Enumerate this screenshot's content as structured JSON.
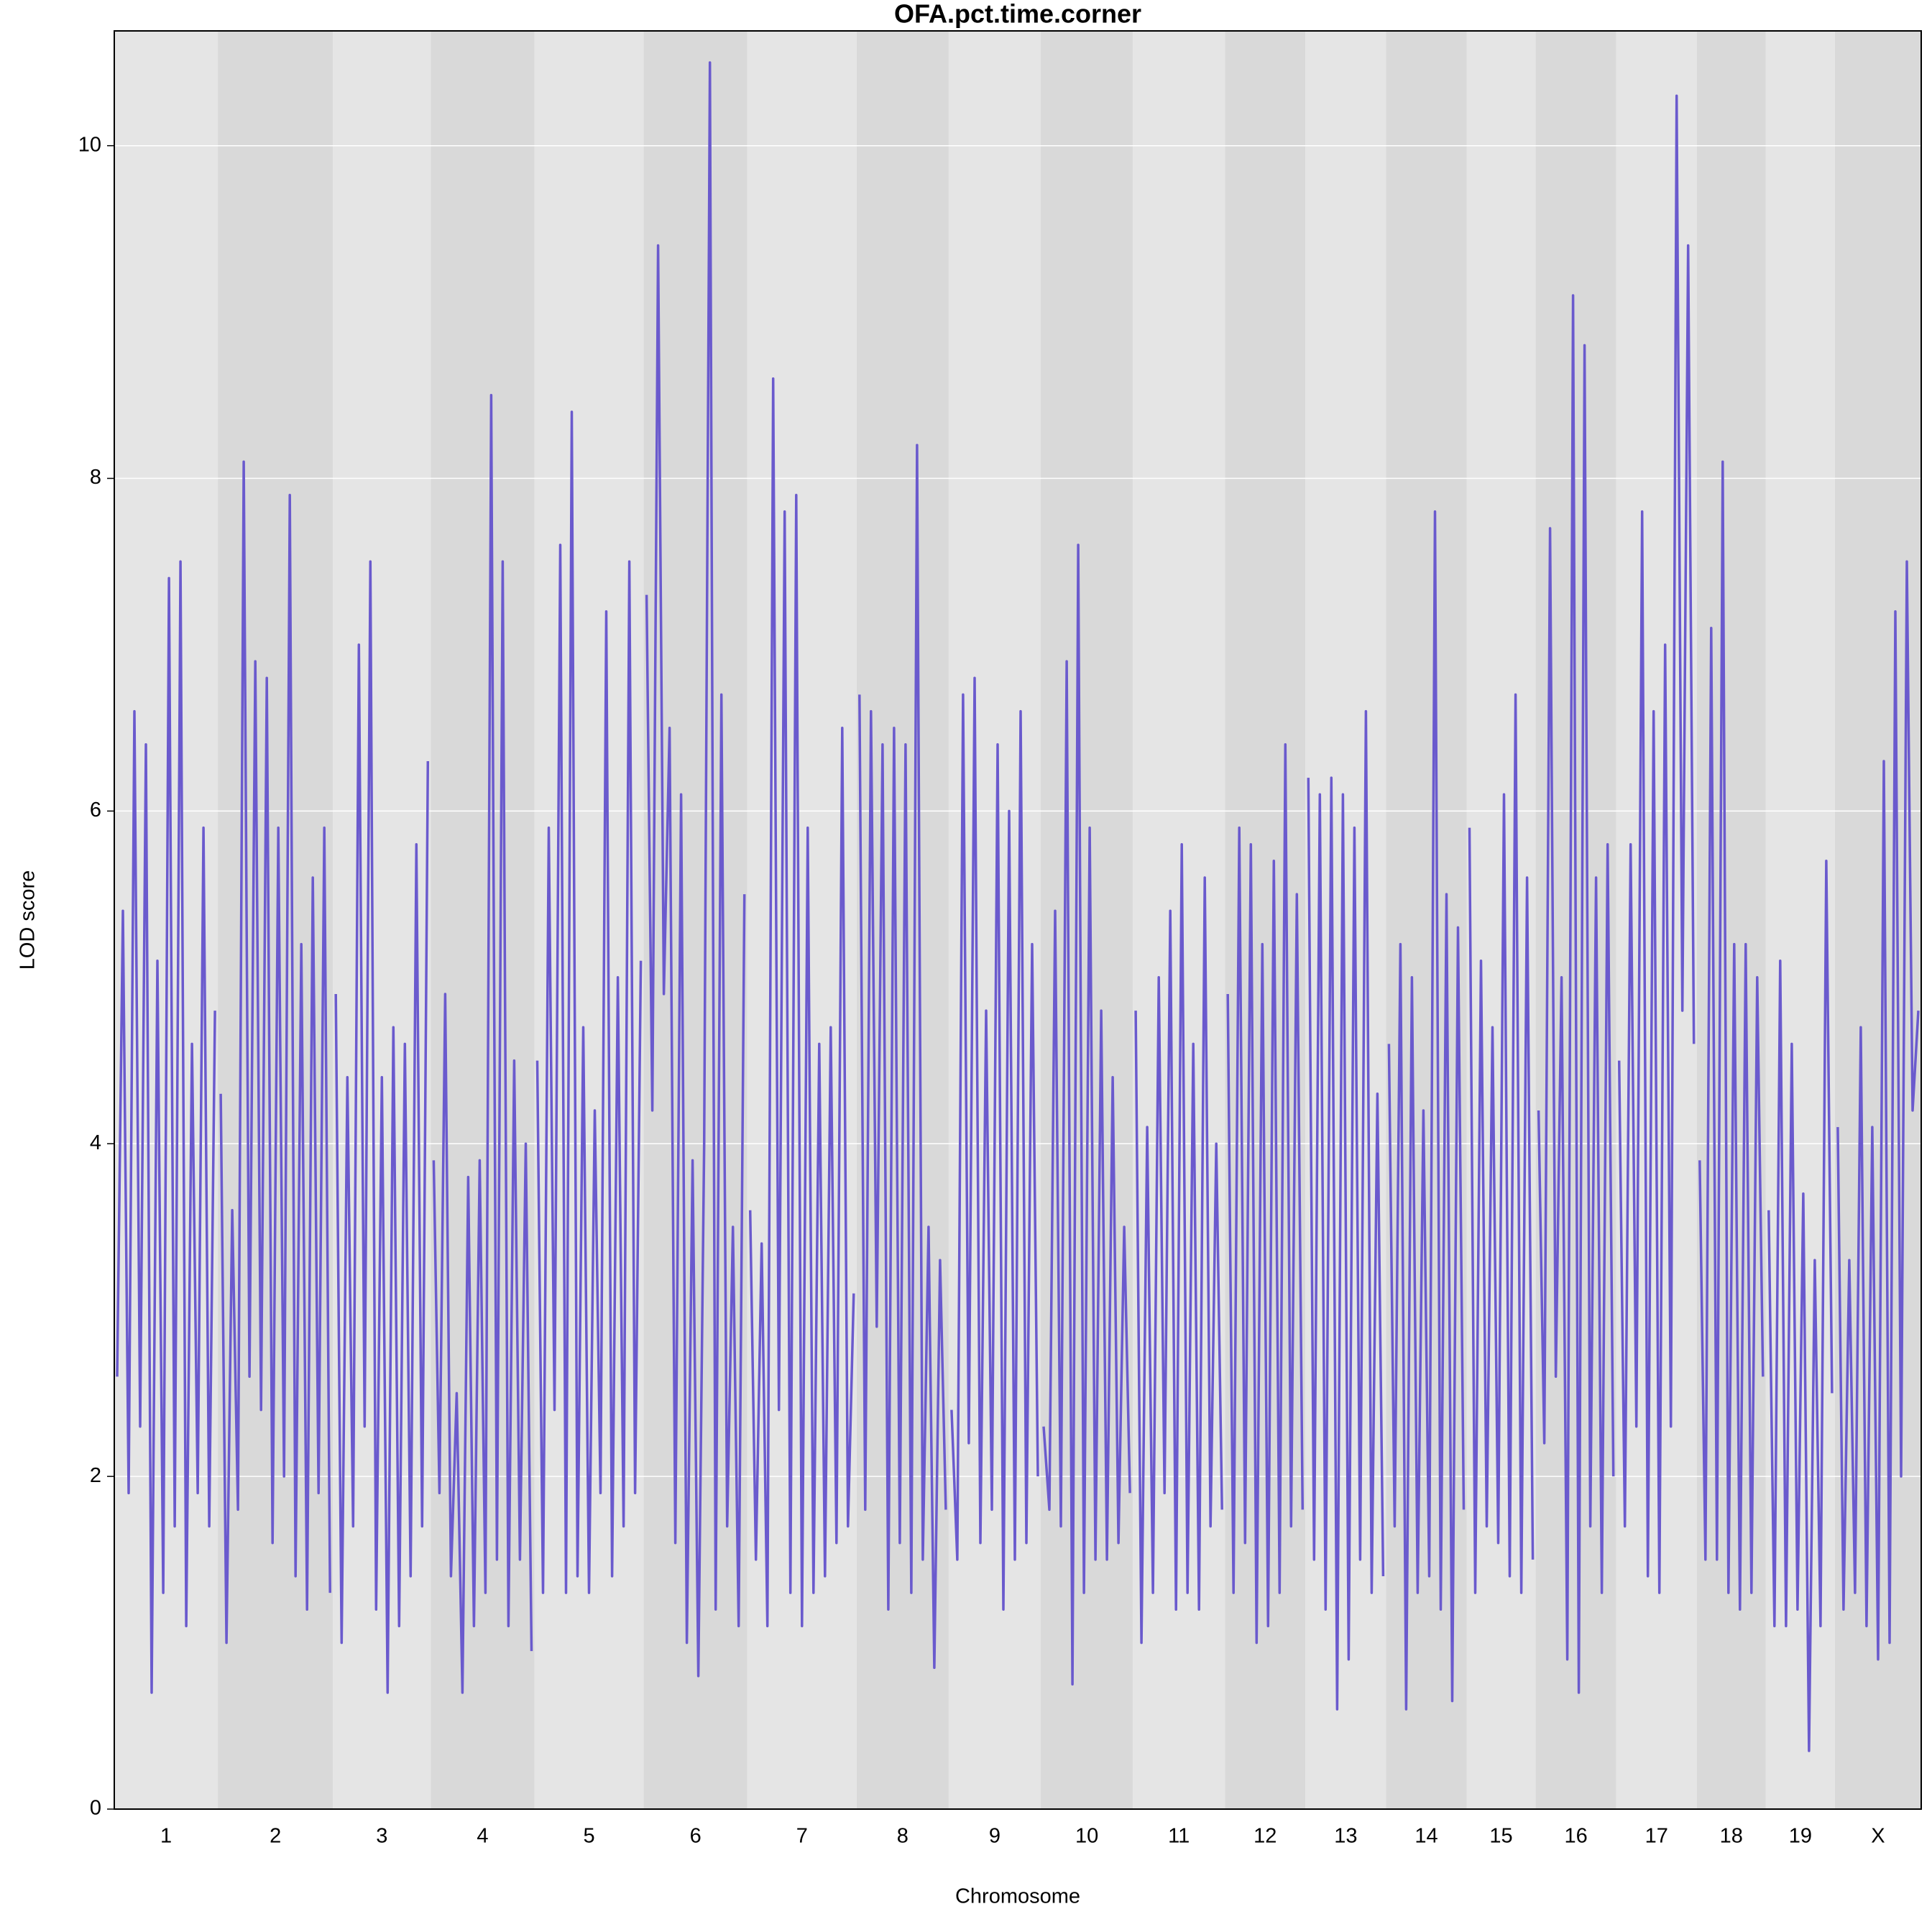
{
  "chart_data": {
    "type": "line",
    "title": "OFA.pct.time.corner",
    "x_label": "Chromosome",
    "y_label": "LOD score",
    "color": "#6a5acd",
    "band_colors": [
      "#e5e5e5",
      "#d9d9d9"
    ],
    "grid": true,
    "ylim": [
      0,
      10.69
    ],
    "yticks": [
      0,
      2,
      4,
      6,
      8,
      10
    ],
    "categories": [
      "1",
      "2",
      "3",
      "4",
      "5",
      "6",
      "7",
      "8",
      "9",
      "10",
      "11",
      "12",
      "13",
      "14",
      "15",
      "16",
      "17",
      "18",
      "19",
      "X"
    ],
    "values": [
      [
        2.6,
        5.4,
        1.9,
        6.6,
        2.3,
        6.4,
        0.7,
        5.1,
        1.3,
        7.4,
        1.7,
        7.5,
        1.1,
        4.6,
        1.9,
        5.9,
        1.7,
        4.8
      ],
      [
        4.3,
        1.0,
        3.6,
        1.8,
        8.1,
        2.6,
        6.9,
        2.4,
        6.8,
        1.6,
        5.9,
        2.0,
        7.9,
        1.4,
        5.2,
        1.2,
        5.6,
        1.9,
        5.9,
        1.3
      ],
      [
        4.9,
        1.0,
        4.4,
        1.7,
        7.0,
        2.3,
        7.5,
        1.2,
        4.4,
        0.7,
        4.7,
        1.1,
        4.6,
        1.4,
        5.8,
        1.7,
        6.3
      ],
      [
        3.9,
        1.9,
        4.9,
        1.4,
        2.5,
        0.7,
        3.8,
        1.1,
        3.9,
        1.3,
        8.5,
        1.5,
        7.5,
        1.1,
        4.5,
        1.5,
        4.0,
        0.95
      ],
      [
        4.5,
        1.3,
        5.9,
        2.4,
        7.6,
        1.3,
        8.4,
        1.4,
        4.7,
        1.3,
        4.2,
        1.9,
        7.2,
        1.4,
        5.0,
        1.7,
        7.5,
        1.9,
        5.1
      ],
      [
        7.3,
        4.2,
        9.4,
        4.9,
        6.5,
        1.6,
        6.1,
        1.0,
        3.9,
        0.8,
        4.0,
        10.5,
        1.2,
        6.7,
        1.7,
        3.5,
        1.1,
        5.5
      ],
      [
        3.6,
        1.5,
        3.4,
        1.1,
        8.6,
        2.4,
        7.8,
        1.3,
        7.9,
        1.1,
        5.9,
        1.3,
        4.6,
        1.4,
        4.7,
        1.6,
        6.5,
        1.7,
        3.1
      ],
      [
        6.7,
        1.8,
        6.6,
        2.9,
        6.4,
        1.2,
        6.5,
        1.6,
        6.4,
        1.3,
        8.2,
        1.5,
        3.5,
        0.85,
        3.3,
        1.8
      ],
      [
        2.4,
        1.5,
        6.7,
        2.2,
        6.8,
        1.6,
        4.8,
        1.8,
        6.4,
        1.2,
        6.0,
        1.5,
        6.6,
        1.6,
        5.2,
        2.0
      ],
      [
        2.3,
        1.8,
        5.4,
        1.7,
        6.9,
        0.75,
        7.6,
        1.3,
        5.9,
        1.5,
        4.8,
        1.5,
        4.4,
        1.6,
        3.5,
        1.9
      ],
      [
        4.8,
        1.0,
        4.1,
        1.3,
        5.0,
        1.9,
        5.4,
        1.2,
        5.8,
        1.3,
        4.6,
        1.2,
        5.6,
        1.7,
        4.0,
        1.8
      ],
      [
        4.9,
        1.3,
        5.9,
        1.6,
        5.8,
        1.0,
        5.2,
        1.1,
        5.7,
        1.3,
        6.4,
        1.7,
        5.5,
        1.8
      ],
      [
        6.2,
        1.5,
        6.1,
        1.2,
        6.2,
        0.6,
        6.1,
        0.9,
        5.9,
        1.5,
        6.6,
        1.3,
        4.3,
        1.4
      ],
      [
        4.6,
        1.7,
        5.2,
        0.6,
        5.0,
        1.3,
        4.2,
        1.4,
        7.8,
        1.2,
        5.5,
        0.65,
        5.3,
        1.8
      ],
      [
        5.9,
        1.3,
        5.1,
        1.7,
        4.7,
        1.6,
        6.1,
        1.4,
        6.7,
        1.3,
        5.6,
        1.5
      ],
      [
        4.2,
        2.2,
        7.7,
        2.6,
        5.0,
        0.9,
        9.1,
        0.7,
        8.8,
        1.7,
        5.6,
        1.3,
        5.8,
        2.0
      ],
      [
        4.5,
        1.7,
        5.8,
        2.3,
        7.8,
        1.4,
        6.6,
        1.3,
        7.0,
        2.3,
        10.3,
        4.8,
        9.4,
        4.6
      ],
      [
        3.9,
        1.5,
        7.1,
        1.5,
        8.1,
        1.3,
        5.2,
        1.2,
        5.2,
        1.3,
        5.0,
        2.6
      ],
      [
        3.6,
        1.1,
        5.1,
        1.1,
        4.6,
        1.2,
        3.7,
        0.35,
        3.3,
        1.1,
        5.7,
        2.5
      ],
      [
        4.1,
        1.2,
        3.3,
        1.3,
        4.7,
        1.1,
        4.1,
        0.9,
        6.3,
        1.0,
        7.2,
        2.0,
        7.5,
        4.2,
        4.8
      ]
    ]
  }
}
